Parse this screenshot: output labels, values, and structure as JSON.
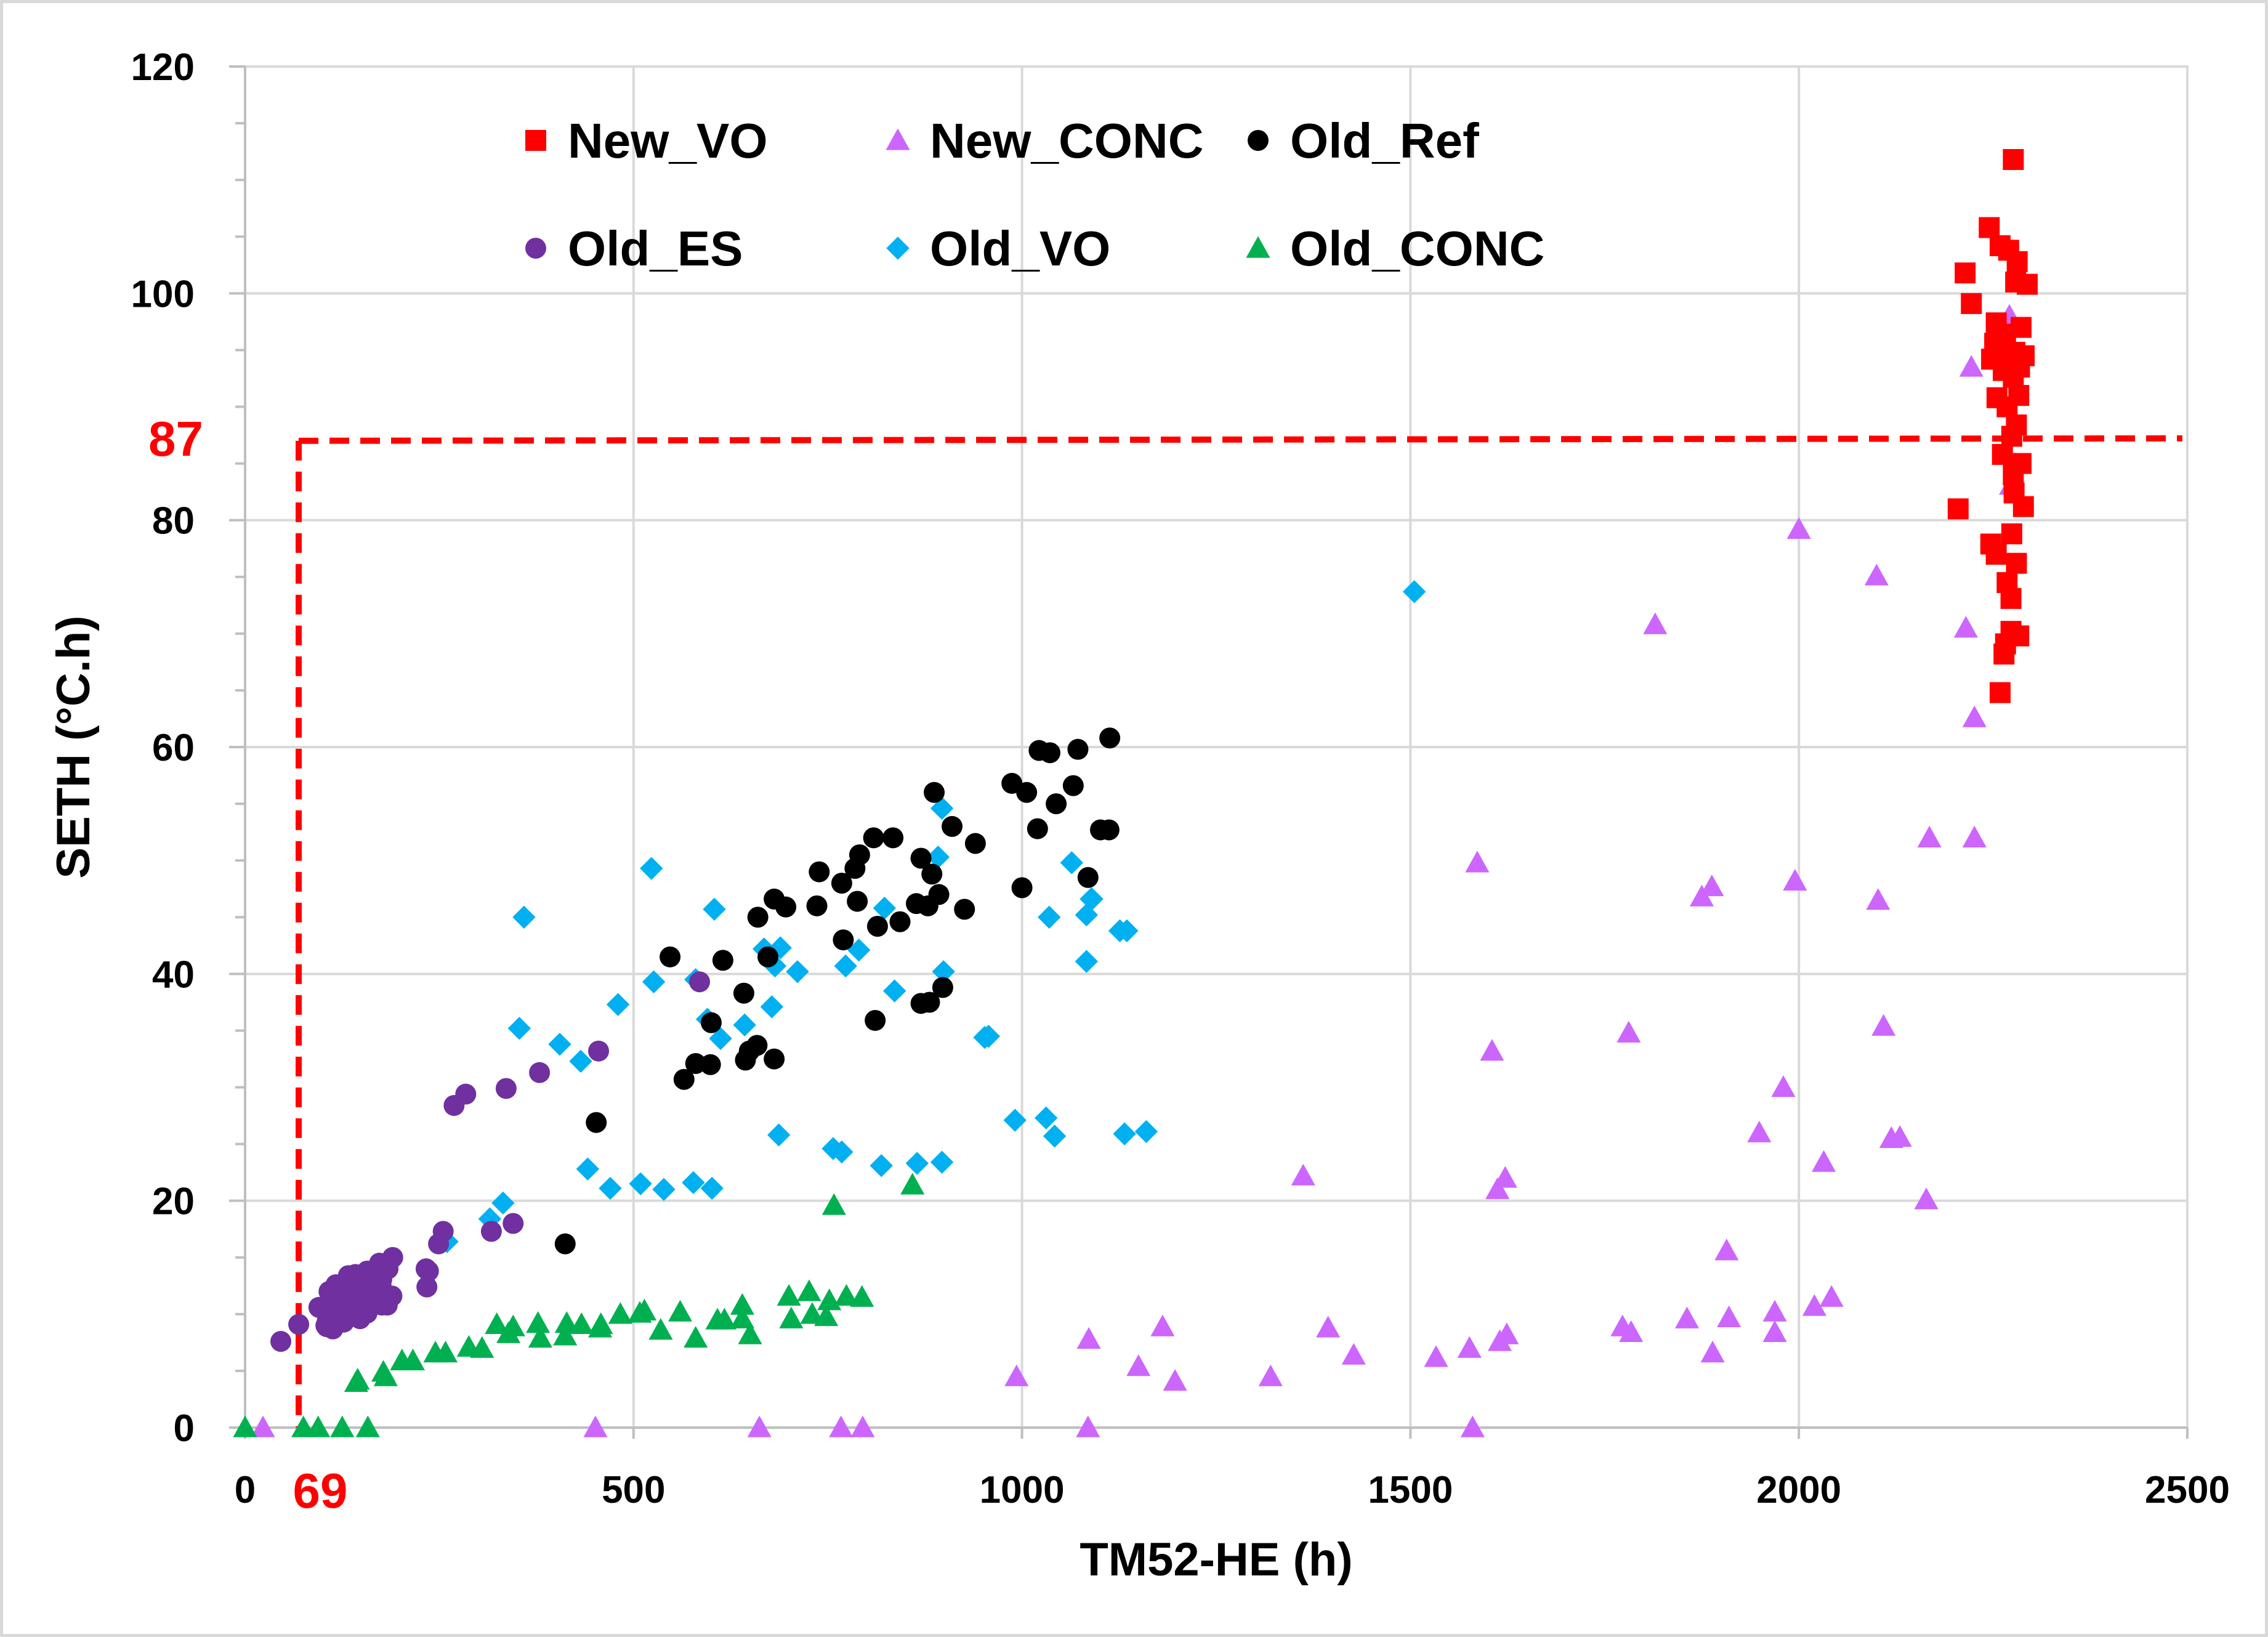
{
  "chart_data": {
    "type": "scatter",
    "title": "",
    "xlabel": "TM52-HE (h)",
    "ylabel": "SETH (°C.h)",
    "xlim": [
      0,
      2500
    ],
    "ylim": [
      0,
      120
    ],
    "x_ticks": [
      0,
      500,
      1000,
      1500,
      2000,
      2500
    ],
    "y_ticks": [
      0,
      20,
      40,
      60,
      80,
      100,
      120
    ],
    "grid": true,
    "legend_position": "top",
    "thresholds": {
      "x_value": 69,
      "y_value": 87,
      "x_label": "69",
      "y_label": "87",
      "color": "#ff0000"
    },
    "series": [
      {
        "name": "New_VO",
        "marker": "square",
        "color": "#ff0000",
        "x": [
          2276,
          2245,
          2259,
          2270,
          2281,
          2279,
          2294,
          2214,
          2222,
          2254,
          2286,
          2266,
          2252,
          2262,
          2278,
          2290,
          2248,
          2273,
          2284,
          2263,
          2276,
          2283,
          2255,
          2268,
          2280,
          2274,
          2262,
          2286,
          2276,
          2277,
          2289,
          2205,
          2274,
          2247,
          2254,
          2280,
          2268,
          2273,
          2273,
          2283,
          2266,
          2264,
          2259
        ],
        "y": [
          111.8,
          105.8,
          104.2,
          103.8,
          102.8,
          101.0,
          100.8,
          101.8,
          99.1,
          97.4,
          97.0,
          96.4,
          95.6,
          95.2,
          94.8,
          94.5,
          94.2,
          93.8,
          93.5,
          93.2,
          92.6,
          91.0,
          90.8,
          90.0,
          88.4,
          87.4,
          85.8,
          85.0,
          84.0,
          82.4,
          81.2,
          81.0,
          78.8,
          77.9,
          77.0,
          76.2,
          74.5,
          73.1,
          70.2,
          69.8,
          69.1,
          68.2,
          64.8
        ]
      },
      {
        "name": "New_CONC",
        "marker": "triangle",
        "color": "#cc66ff",
        "x": [
          2271,
          2222,
          2273,
          2000,
          2100,
          1815,
          2215,
          2226,
          2168,
          2226,
          1586,
          1888,
          1875,
          1995,
          2102,
          2109,
          1781,
          1605,
          1980,
          1949,
          2119,
          2130,
          2032,
          1362,
          1622,
          1612,
          2164,
          1907,
          1969,
          2042,
          1856,
          1910,
          1394,
          1773,
          1181,
          2020,
          1086,
          1784,
          1969,
          1624,
          1615,
          1576,
          1427,
          1533,
          1889,
          1150,
          1320,
          993,
          1197,
          23,
          451,
          662,
          767,
          795,
          1085,
          1580
        ],
        "y": [
          98.0,
          93.5,
          83.1,
          79.2,
          75.1,
          70.8,
          70.5,
          62.6,
          52.0,
          52.0,
          49.8,
          47.7,
          46.8,
          48.2,
          46.5,
          35.4,
          34.8,
          33.2,
          30.0,
          26.0,
          25.5,
          25.6,
          23.4,
          22.2,
          22.0,
          21.0,
          20.1,
          15.6,
          10.2,
          11.5,
          9.6,
          9.7,
          8.8,
          8.9,
          8.9,
          10.7,
          7.8,
          8.4,
          8.4,
          8.2,
          7.6,
          7.0,
          6.4,
          6.2,
          6.6,
          5.4,
          4.5,
          4.5,
          4.1,
          0.0,
          0.0,
          0.0,
          0.0,
          0.0,
          0.0,
          0.0
        ]
      },
      {
        "name": "Old_Ref",
        "marker": "circle",
        "color": "#000000",
        "x": [
          1113,
          1022,
          1036,
          1072,
          1066,
          987,
          887,
          1006,
          1044,
          834,
          910,
          940,
          1020,
          1101,
          1112,
          1000,
          809,
          791,
          870,
          739,
          785,
          884,
          1085,
          768,
          864,
          788,
          893,
          681,
          736,
          696,
          926,
          879,
          814,
          660,
          843,
          673,
          881,
          898,
          615,
          547,
          600,
          642,
          644,
          599,
          580,
          659,
          681,
          649,
          770,
          870,
          811,
          565,
          452,
          412
        ],
        "y": [
          60.8,
          59.7,
          59.5,
          59.8,
          56.6,
          56.8,
          56.0,
          56.0,
          55.0,
          52.0,
          53.0,
          51.5,
          52.8,
          52.7,
          52.7,
          47.6,
          52.0,
          50.5,
          50.2,
          49.0,
          49.3,
          48.8,
          48.5,
          48.0,
          46.2,
          46.4,
          47.0,
          46.6,
          46.0,
          45.9,
          45.7,
          46.0,
          44.2,
          45.0,
          44.6,
          41.5,
          37.5,
          38.8,
          41.2,
          41.5,
          35.7,
          38.3,
          32.4,
          32.0,
          32.1,
          33.7,
          32.5,
          33.2,
          43.0,
          37.4,
          35.9,
          30.7,
          26.9,
          16.2
        ]
      },
      {
        "name": "Old_ES",
        "marker": "circle",
        "color": "#7030a0",
        "x": [
          585,
          455,
          379,
          336,
          284,
          269,
          345,
          317,
          255,
          249,
          236,
          234,
          233,
          170,
          160,
          175,
          150,
          140,
          160,
          130,
          120,
          115,
          95,
          190,
          173,
          184,
          157,
          143,
          176,
          117,
          165,
          113,
          146,
          141,
          165,
          160,
          139,
          110,
          189,
          136,
          183,
          173,
          160,
          167,
          133,
          106,
          148,
          176,
          133,
          170,
          113,
          123,
          108,
          118,
          157,
          117,
          157,
          133,
          129,
          130,
          127,
          137,
          171,
          125,
          115,
          142,
          149,
          152,
          171,
          134,
          148,
          105,
          148,
          128,
          104,
          172,
          108,
          69,
          46
        ],
        "y": [
          39.3,
          33.2,
          31.3,
          29.9,
          29.4,
          28.4,
          18.0,
          17.3,
          17.3,
          16.2,
          13.8,
          12.4,
          14.0,
          13.5,
          12.9,
          12.6,
          12.3,
          11.8,
          11.0,
          10.7,
          10.5,
          10.3,
          10.6,
          15.0,
          14.5,
          14.0,
          13.8,
          13.1,
          13.1,
          12.6,
          12.2,
          11.8,
          11.6,
          11.1,
          11.0,
          10.6,
          10.4,
          10.0,
          11.6,
          11.0,
          10.8,
          12.5,
          13.2,
          11.7,
          12.0,
          9.5,
          9.6,
          10.8,
          13.4,
          11.8,
          8.7,
          9.4,
          10.0,
          11.9,
          10.1,
          11.2,
          12.9,
          12.1,
          11.3,
          10.3,
          9.3,
          10.5,
          12.1,
          10.8,
          11.0,
          13.5,
          10.4,
          11.2,
          12.8,
          9.8,
          11.7,
          8.9,
          12.6,
          10.9,
          9.0,
          14.0,
          12.0,
          9.1,
          7.6
        ]
      },
      {
        "name": "Old_VO",
        "marker": "diamond",
        "color": "#00b0f0",
        "x": [
          1505,
          897,
          523,
          604,
          359,
          790,
          689,
          1064,
          1089,
          957,
          1035,
          1090,
          1083,
          1126,
          1135,
          668,
          823,
          836,
          899,
          773,
          480,
          526,
          1083,
          892,
          711,
          580,
          682,
          952,
          595,
          612,
          643,
          353,
          405,
          432,
          678,
          991,
          1031,
          1160,
          1132,
          1042,
          768,
          332,
          757,
          819,
          687,
          865,
          897,
          315,
          441,
          577,
          601,
          509,
          539,
          470,
          260
        ],
        "y": [
          73.7,
          54.6,
          49.3,
          45.7,
          45.0,
          42.1,
          42.3,
          49.8,
          46.6,
          34.5,
          45.0,
          46.6,
          45.2,
          43.8,
          43.8,
          42.2,
          45.8,
          38.5,
          40.2,
          40.7,
          37.3,
          39.3,
          41.1,
          50.3,
          40.2,
          39.5,
          40.7,
          34.4,
          36.0,
          34.3,
          35.5,
          35.2,
          33.8,
          32.3,
          37.1,
          27.1,
          27.3,
          26.1,
          25.9,
          25.7,
          24.3,
          19.8,
          24.6,
          23.1,
          25.8,
          23.3,
          23.4,
          18.4,
          22.8,
          21.6,
          21.1,
          21.5,
          21.0,
          21.1,
          16.4
        ]
      },
      {
        "name": "Old_CONC",
        "marker": "triangle",
        "color": "#00b050",
        "x": [
          758,
          859,
          774,
          700,
          726,
          752,
          794,
          748,
          730,
          640,
          560,
          640,
          703,
          580,
          617,
          608,
          650,
          508,
          483,
          514,
          535,
          458,
          412,
          339,
          324,
          305,
          377,
          288,
          345,
          380,
          414,
          433,
          457,
          245,
          258,
          202,
          216,
          178,
          181,
          143,
          145,
          0,
          75,
          94,
          125,
          158
        ],
        "y": [
          19.6,
          21.4,
          11.6,
          11.6,
          12.0,
          11.2,
          11.5,
          9.8,
          10.0,
          10.8,
          10.2,
          9.6,
          9.6,
          7.9,
          9.5,
          9.5,
          8.2,
          10.1,
          10.0,
          10.3,
          8.6,
          9.1,
          8.1,
          8.3,
          9.1,
          7.0,
          9.2,
          7.1,
          8.9,
          7.9,
          9.2,
          9.1,
          8.8,
          6.6,
          6.6,
          5.9,
          5.9,
          4.9,
          4.5,
          4.0,
          4.2,
          0.0,
          0.0,
          0.0,
          0.0,
          0.0
        ]
      }
    ]
  }
}
